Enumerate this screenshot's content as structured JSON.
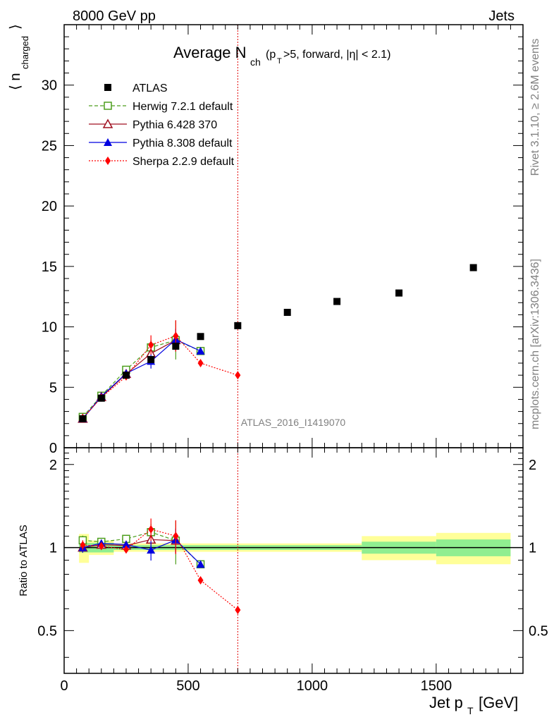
{
  "header": {
    "left": "8000 GeV pp",
    "right": "Jets"
  },
  "side": {
    "rivet": "Rivet 3.1.10, ≥ 2.6M events",
    "mcplots": "mcplots.cern.ch [arXiv:1306.3436]"
  },
  "plot_title": {
    "main": "Average N",
    "sub_ch": "ch",
    "paren_open": "(p",
    "sub_t": "T",
    "rest": ">5, forward, |η| < 2.1)"
  },
  "watermark": "ATLAS_2016_I1419070",
  "axis": {
    "ylabel_main": "⟨ n",
    "ylabel_sub": "charged",
    "ylabel_close": "⟩",
    "xlabel_main": "Jet p",
    "xlabel_sub": "T",
    "xlabel_unit": "[GeV]",
    "ratio_ylabel": "Ratio to ATLAS"
  },
  "chart_data": {
    "type": "scatter",
    "x_range": [
      0,
      1850
    ],
    "y_range": [
      0,
      35
    ],
    "ratio_range": [
      0.35,
      2.3
    ],
    "main_y_ticks": [
      0,
      5,
      10,
      15,
      20,
      25,
      30
    ],
    "ratio_y_ticks": [
      0.5,
      1,
      2
    ],
    "x_ticks": [
      0,
      500,
      1000,
      1500
    ],
    "vline_x": 700,
    "legend_position": "top-left",
    "series": [
      {
        "name": "ATLAS",
        "color": "#000000",
        "marker": "square-filled",
        "line": "none",
        "x": [
          75,
          150,
          250,
          350,
          450,
          550,
          700,
          900,
          1100,
          1350,
          1650
        ],
        "y": [
          2.4,
          4.1,
          6.0,
          7.3,
          8.4,
          9.2,
          10.1,
          11.2,
          12.1,
          12.8,
          14.9
        ],
        "ratio_band_inner": [
          [
            60,
            200,
            0.04
          ],
          [
            200,
            1200,
            0.02
          ],
          [
            1200,
            1500,
            0.05
          ],
          [
            1500,
            1800,
            0.07
          ]
        ],
        "ratio_band_outer": [
          [
            60,
            100,
            0.12
          ],
          [
            100,
            200,
            0.06
          ],
          [
            200,
            1200,
            0.035
          ],
          [
            1200,
            1500,
            0.1
          ],
          [
            1500,
            1800,
            0.13
          ]
        ]
      },
      {
        "name": "Herwig 7.2.1 default",
        "color": "#4d9e1d",
        "marker": "square-open",
        "line": "dashed",
        "x": [
          75,
          150,
          250,
          350,
          450,
          550
        ],
        "y": [
          2.55,
          4.3,
          6.45,
          8.3,
          8.9,
          8.0
        ],
        "yerr": [
          0.1,
          0.1,
          0.15,
          0.6,
          1.6,
          0.2
        ]
      },
      {
        "name": "Pythia 6.428 370",
        "color": "#a01020",
        "marker": "triangle-open",
        "line": "solid",
        "x": [
          75,
          150,
          250,
          350,
          450
        ],
        "y": [
          2.4,
          4.2,
          6.1,
          7.8,
          8.9
        ],
        "yerr": [
          0.1,
          0.1,
          0.15,
          0.5,
          0.9
        ]
      },
      {
        "name": "Pythia 8.308 default",
        "color": "#0000e0",
        "marker": "triangle-filled",
        "line": "solid",
        "x": [
          75,
          150,
          250,
          350,
          450,
          550
        ],
        "y": [
          2.4,
          4.25,
          6.15,
          7.15,
          8.95,
          8.0
        ],
        "yerr": [
          0.1,
          0.1,
          0.2,
          0.6,
          0.9,
          0.2
        ]
      },
      {
        "name": "Sherpa 2.2.9 default",
        "color": "#ff0000",
        "marker": "diamond-filled",
        "line": "dotted",
        "x": [
          75,
          150,
          250,
          350,
          450,
          550,
          700
        ],
        "y": [
          2.45,
          4.15,
          5.9,
          8.5,
          9.25,
          7.0,
          6.0
        ],
        "yerr": [
          0.1,
          0.1,
          0.15,
          0.8,
          1.3,
          0.05,
          0.05
        ]
      }
    ]
  }
}
